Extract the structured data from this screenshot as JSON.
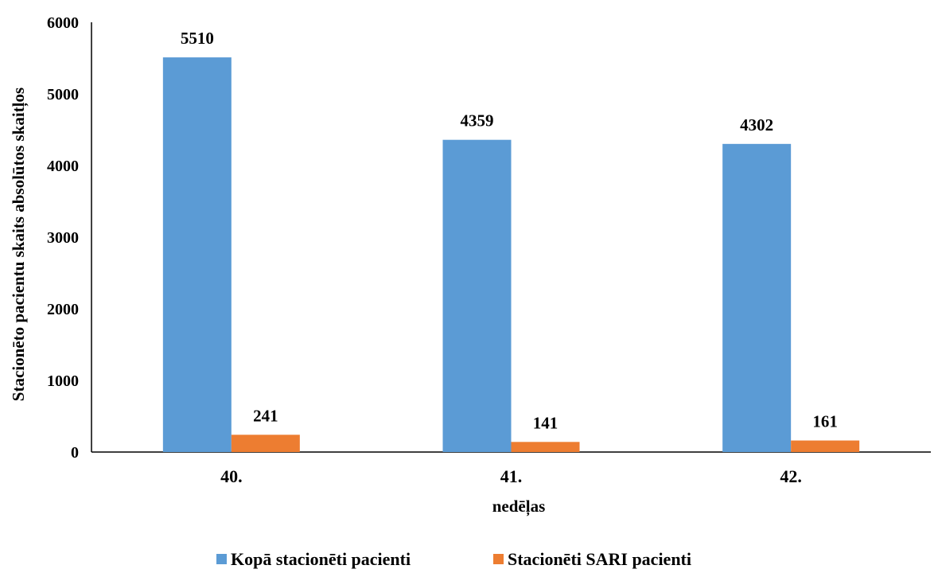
{
  "chart_data": {
    "type": "bar",
    "title": "",
    "xlabel": "nedēļas",
    "ylabel": "Stacionēto pacientu skaits absolūtos skaitļos",
    "categories": [
      "40.",
      "41.",
      "42."
    ],
    "series": [
      {
        "name": "Kopā stacionēti pacienti",
        "values": [
          5510,
          4359,
          4302
        ],
        "color": "#5B9BD5"
      },
      {
        "name": "Stacionēti SARI pacienti",
        "values": [
          241,
          141,
          161
        ],
        "color": "#ED7D31"
      }
    ],
    "ylim": [
      0,
      6000
    ],
    "yticks": [
      0,
      1000,
      2000,
      3000,
      4000,
      5000,
      6000
    ],
    "grid": false,
    "legend_position": "bottom",
    "data_labels": true
  }
}
